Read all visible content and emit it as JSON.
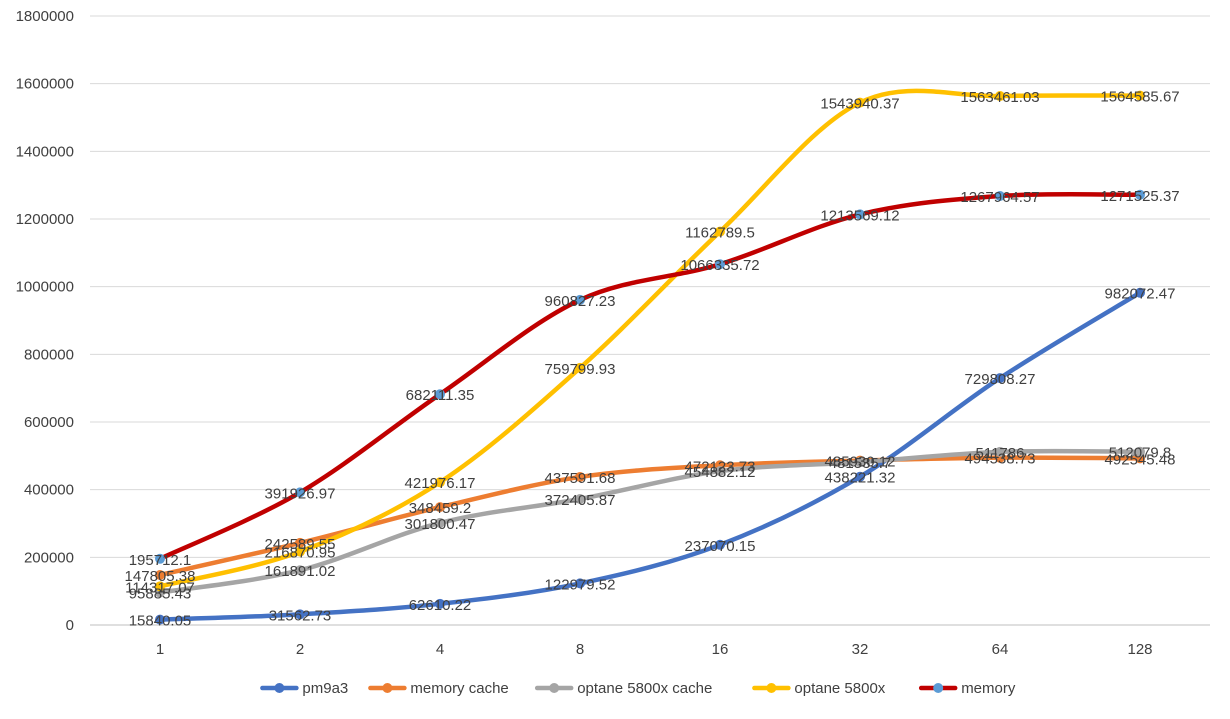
{
  "chart_data": {
    "type": "line",
    "title": "",
    "xlabel": "",
    "ylabel": "",
    "categories": [
      "1",
      "2",
      "4",
      "8",
      "16",
      "32",
      "64",
      "128"
    ],
    "y_ticks": [
      "0",
      "200000",
      "400000",
      "600000",
      "800000",
      "1000000",
      "1200000",
      "1400000",
      "1600000",
      "1800000"
    ],
    "ylim": [
      0,
      1800000
    ],
    "grid": "horizontal",
    "legend_position": "bottom",
    "series": [
      {
        "name": "pm9a3",
        "color": "#4472C4",
        "values": [
          15840.05,
          31562.73,
          62610.22,
          122979.52,
          237070.15,
          438221.32,
          729808.27,
          982072.47
        ],
        "labels": [
          "15840.05",
          "31562.73",
          "62610.22",
          "122979.52",
          "237070.15",
          "438221.32",
          "729808.27",
          "982072.47"
        ]
      },
      {
        "name": "memory cache",
        "color": "#ED7D31",
        "values": [
          147805.38,
          242589.55,
          348459.2,
          437591.68,
          472123.73,
          485930.12,
          494538.73,
          492545.48
        ],
        "labels": [
          "147805.38",
          "242589.55",
          "348459.2",
          "437591.68",
          "472123.73",
          "485930.12",
          "494538.73",
          "492545.48"
        ]
      },
      {
        "name": "optane 5800x cache",
        "color": "#A5A5A5",
        "values": [
          95885.43,
          161891.02,
          301800.47,
          372405.87,
          454882.12,
          481535.7,
          511786,
          512079.8
        ],
        "labels": [
          "95885.43",
          "161891.02",
          "301800.47",
          "372405.87",
          "454882.12",
          "481535.7",
          "511786",
          "512079.8"
        ]
      },
      {
        "name": "optane 5800x",
        "color": "#FFC000",
        "values": [
          114317.07,
          216870.95,
          421976.17,
          759799.93,
          1162789.5,
          1543940.37,
          1563461.03,
          1564585.67
        ],
        "labels": [
          "114317.07",
          "216870.95",
          "421976.17",
          "759799.93",
          "1162789.5",
          "1543940.37",
          "1563461.03",
          "1564585.67"
        ]
      },
      {
        "name": "memory",
        "color": "#C00000",
        "marker_color": "#5B9BD5",
        "values": [
          195712.1,
          391926.97,
          682111.35,
          960827.23,
          1066335.72,
          1213569.12,
          1267964.57,
          1271525.37
        ],
        "labels": [
          "195712.1",
          "391926.97",
          "682111.35",
          "960827.23",
          "1066335.72",
          "1213569.12",
          "1267964.57",
          "1271525.37"
        ]
      }
    ]
  }
}
